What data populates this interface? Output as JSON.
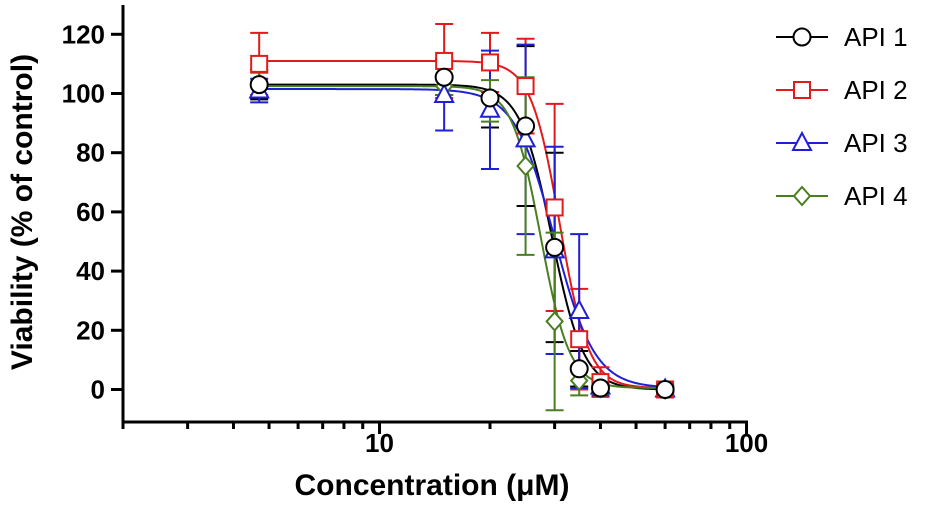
{
  "chart_data": {
    "type": "scatter",
    "title": "",
    "xlabel": "Concentration (μM)",
    "ylabel": "Viability (% of control)",
    "xscale": "log",
    "xlim": [
      2,
      100
    ],
    "ylim": [
      0,
      130
    ],
    "x_ticks": [
      10,
      100
    ],
    "x_tick_labels": [
      "10",
      "100"
    ],
    "y_ticks": [
      0,
      20,
      40,
      60,
      80,
      100,
      120
    ],
    "y_tick_labels": [
      "0",
      "20",
      "40",
      "60",
      "80",
      "100",
      "120"
    ],
    "grid": false,
    "legend_position": "top-right",
    "x": [
      4.7,
      15,
      20,
      25,
      30,
      35,
      40,
      60
    ],
    "series": [
      {
        "name": "API 1",
        "color": "#000000",
        "marker": "circle",
        "values": [
          103,
          105.5,
          98.5,
          89,
          48,
          7,
          0.5,
          0
        ],
        "errors": [
          5,
          6,
          10,
          27,
          32,
          6,
          2,
          1
        ],
        "fit": {
          "top": 103,
          "bottom": 0,
          "ic50": 29.5,
          "hill": 10
        }
      },
      {
        "name": "API 2",
        "color": "#e31a1c",
        "marker": "square",
        "values": [
          110,
          111,
          110.5,
          102.5,
          61.5,
          17,
          2.5,
          0
        ],
        "errors": [
          10.5,
          12.5,
          10,
          16,
          35,
          17,
          5,
          1.5
        ],
        "fit": {
          "top": 111,
          "bottom": 0.5,
          "ic50": 31,
          "hill": 11
        }
      },
      {
        "name": "API 3",
        "color": "#1f1fd6",
        "marker": "triangle",
        "values": [
          101,
          99.5,
          94.5,
          84.5,
          47,
          26.5,
          1,
          0
        ],
        "errors": [
          4,
          12,
          20,
          32,
          35,
          26,
          3,
          1
        ],
        "fit": {
          "top": 101.5,
          "bottom": 0.5,
          "ic50": 30,
          "hill": 8
        }
      },
      {
        "name": "API 4",
        "color": "#4a7f20",
        "marker": "diamond",
        "values": [
          103,
          102.5,
          97.5,
          75.5,
          23,
          3,
          0.5,
          0
        ],
        "errors": [
          4,
          3,
          7,
          30,
          30,
          5,
          2,
          1
        ],
        "fit": {
          "top": 102.5,
          "bottom": 0.5,
          "ic50": 27.5,
          "hill": 11
        }
      }
    ]
  }
}
